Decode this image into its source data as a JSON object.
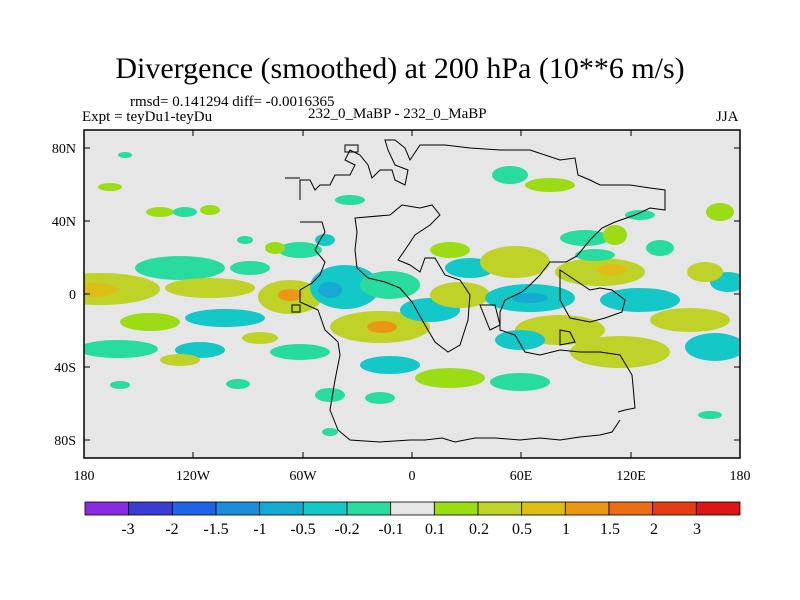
{
  "title": "Divergence (smoothed) at 200 hPa (10**6 m/s)",
  "stats": "rmsd= 0.141294 diff= -0.0016365",
  "expt": "Expt = teyDu1-teyDu",
  "case": "232_0_MaBP - 232_0_MaBP",
  "season": "JJA",
  "xticks": [
    "180",
    "120W",
    "60W",
    "0",
    "60E",
    "120E",
    "180"
  ],
  "yticks": [
    "80N",
    "40N",
    "0",
    "40S",
    "80S"
  ],
  "colorbar": {
    "labels": [
      "-3",
      "-2",
      "-1.5",
      "-1",
      "-0.5",
      "-0.2",
      "-0.1",
      "0.1",
      "0.2",
      "0.5",
      "1",
      "1.5",
      "2",
      "3"
    ],
    "colors": [
      "#8a2be2",
      "#3c3cd2",
      "#1e64e6",
      "#1e8cdc",
      "#14aad2",
      "#14c8c8",
      "#28dca0",
      "#e6e6e6",
      "#9bdc14",
      "#bed228",
      "#dcbe14",
      "#eb9614",
      "#eb6e14",
      "#e63c14",
      "#dc1414"
    ]
  },
  "colors": {
    "background": "#e6e6e6",
    "positive": "#bed228",
    "negative": "#14c8c8"
  }
}
